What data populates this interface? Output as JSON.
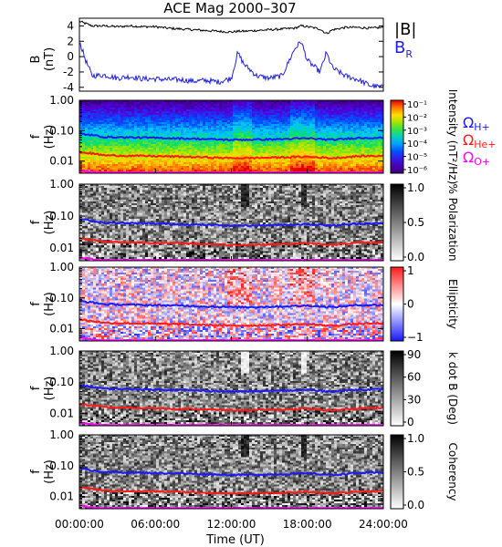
{
  "title": "ACE Mag 2000–307",
  "xaxis": {
    "label": "Time (UT)",
    "ticks": [
      "00:00:00",
      "06:00:00",
      "12:00:00",
      "18:00:00",
      "24:00:00"
    ],
    "range_hours": [
      0,
      24
    ]
  },
  "labels": {
    "top_ylabel_1": "B",
    "top_ylabel_2": "(nT)",
    "freq_ylabel_1": "f",
    "freq_ylabel_2": "(Hz)",
    "legend_B": "|B|",
    "legend_BR": "B",
    "legend_BR_sub": "R",
    "omega": "Ω",
    "omega_H_sub": "H+",
    "omega_He_sub": "He+",
    "omega_O_sub": "O+"
  },
  "colors": {
    "B_total": "#000000",
    "B_R": "#2020e0",
    "omega_H": "#1a1aff",
    "omega_He": "#ff1a1a",
    "omega_O": "#ff00ff"
  },
  "chart_data": [
    {
      "type": "line",
      "panel": "magnetic-field",
      "ylabel": "B (nT)",
      "ylim": [
        -4.5,
        5
      ],
      "yticks": [
        "4",
        "2",
        "0",
        "-2",
        "-4"
      ],
      "x_hours": [
        0,
        0.5,
        1,
        2,
        3,
        4,
        5,
        6,
        7,
        8,
        9,
        10,
        11,
        12,
        12.5,
        13,
        14,
        15,
        16,
        17,
        17.5,
        18,
        19,
        19.5,
        20,
        21,
        22,
        23,
        24
      ],
      "series": [
        {
          "name": "|B|",
          "values": [
            4.6,
            4.3,
            4.0,
            4.0,
            3.9,
            4.0,
            3.9,
            3.9,
            3.7,
            3.6,
            3.5,
            3.4,
            3.3,
            3.2,
            3.3,
            3.3,
            3.4,
            3.5,
            3.6,
            3.7,
            4.0,
            3.9,
            3.6,
            3.0,
            3.5,
            3.8,
            3.8,
            3.7,
            3.8
          ]
        },
        {
          "name": "B_R",
          "values": [
            2.0,
            -0.5,
            -2.5,
            -2.4,
            -2.8,
            -2.6,
            -2.9,
            -2.9,
            -3.0,
            -3.0,
            -3.2,
            -3.1,
            -3.3,
            -2.8,
            0.5,
            -1.0,
            -2.5,
            -2.8,
            -2.5,
            1.0,
            2.0,
            -0.5,
            -2.0,
            0.5,
            -1.5,
            -2.5,
            -3.0,
            -3.8,
            -4.0
          ]
        }
      ]
    },
    {
      "type": "heatmap",
      "panel": "power-spectrum",
      "ylabel": "f (Hz)",
      "yscale": "log",
      "ylim": [
        0.004,
        1.0
      ],
      "yticks": [
        "1.00",
        "0.10",
        "0.01"
      ],
      "colorbar": {
        "label": "Intensity (nT²/Hz)",
        "labels": [
          "10⁻¹",
          "10⁻²",
          "10⁻³",
          "10⁻⁴",
          "10⁻⁵",
          "10⁻⁶"
        ],
        "colormap": "rainbow"
      }
    },
    {
      "type": "heatmap",
      "panel": "polarization",
      "ylabel": "f (Hz)",
      "yscale": "log",
      "ylim": [
        0.004,
        1.0
      ],
      "yticks": [
        "1.00",
        "0.10",
        "0.01"
      ],
      "colorbar": {
        "label": "% Polarization",
        "labels": [
          "1.0",
          "0.5",
          "0.0"
        ],
        "colormap": "gray"
      }
    },
    {
      "type": "heatmap",
      "panel": "ellipticity",
      "ylabel": "f (Hz)",
      "yscale": "log",
      "ylim": [
        0.004,
        1.0
      ],
      "yticks": [
        "1.00",
        "0.10",
        "0.01"
      ],
      "colorbar": {
        "label": "Ellipticity",
        "labels": [
          "1",
          "0",
          "−1"
        ],
        "colormap": "blue-white-red"
      }
    },
    {
      "type": "heatmap",
      "panel": "k-dot-b",
      "ylabel": "f (Hz)",
      "yscale": "log",
      "ylim": [
        0.004,
        1.0
      ],
      "yticks": [
        "1.00",
        "0.10",
        "0.01"
      ],
      "colorbar": {
        "label": "k dot B (Deg)",
        "labels": [
          "90",
          "60",
          "30",
          "0"
        ],
        "colormap": "gray"
      }
    },
    {
      "type": "heatmap",
      "panel": "coherency",
      "ylabel": "f (Hz)",
      "yscale": "log",
      "ylim": [
        0.004,
        1.0
      ],
      "yticks": [
        "1.00",
        "0.10",
        "0.01"
      ],
      "colorbar": {
        "label": "Coherency",
        "labels": [
          "1.0",
          "0.5",
          "0.0"
        ],
        "colormap": "gray"
      }
    },
    {
      "type": "line",
      "panel": "gyrofrequency-overlays",
      "yscale": "log",
      "x_hours": [
        0,
        2,
        4,
        6,
        8,
        10,
        12,
        14,
        16,
        18,
        20,
        22,
        24
      ],
      "series": [
        {
          "name": "ΩH+",
          "values": [
            0.08,
            0.062,
            0.06,
            0.058,
            0.056,
            0.053,
            0.05,
            0.051,
            0.053,
            0.056,
            0.05,
            0.058,
            0.059
          ]
        },
        {
          "name": "ΩHe+",
          "values": [
            0.02,
            0.0155,
            0.015,
            0.0145,
            0.014,
            0.0133,
            0.0125,
            0.0128,
            0.0133,
            0.014,
            0.0125,
            0.0145,
            0.015
          ]
        },
        {
          "name": "ΩO+",
          "values": [
            0.005,
            0.0039,
            0.0038,
            0.0036,
            0.0035,
            0.0033,
            0.0031,
            0.0032,
            0.0033,
            0.0035,
            0.0031,
            0.0036,
            0.0037
          ]
        }
      ]
    }
  ]
}
